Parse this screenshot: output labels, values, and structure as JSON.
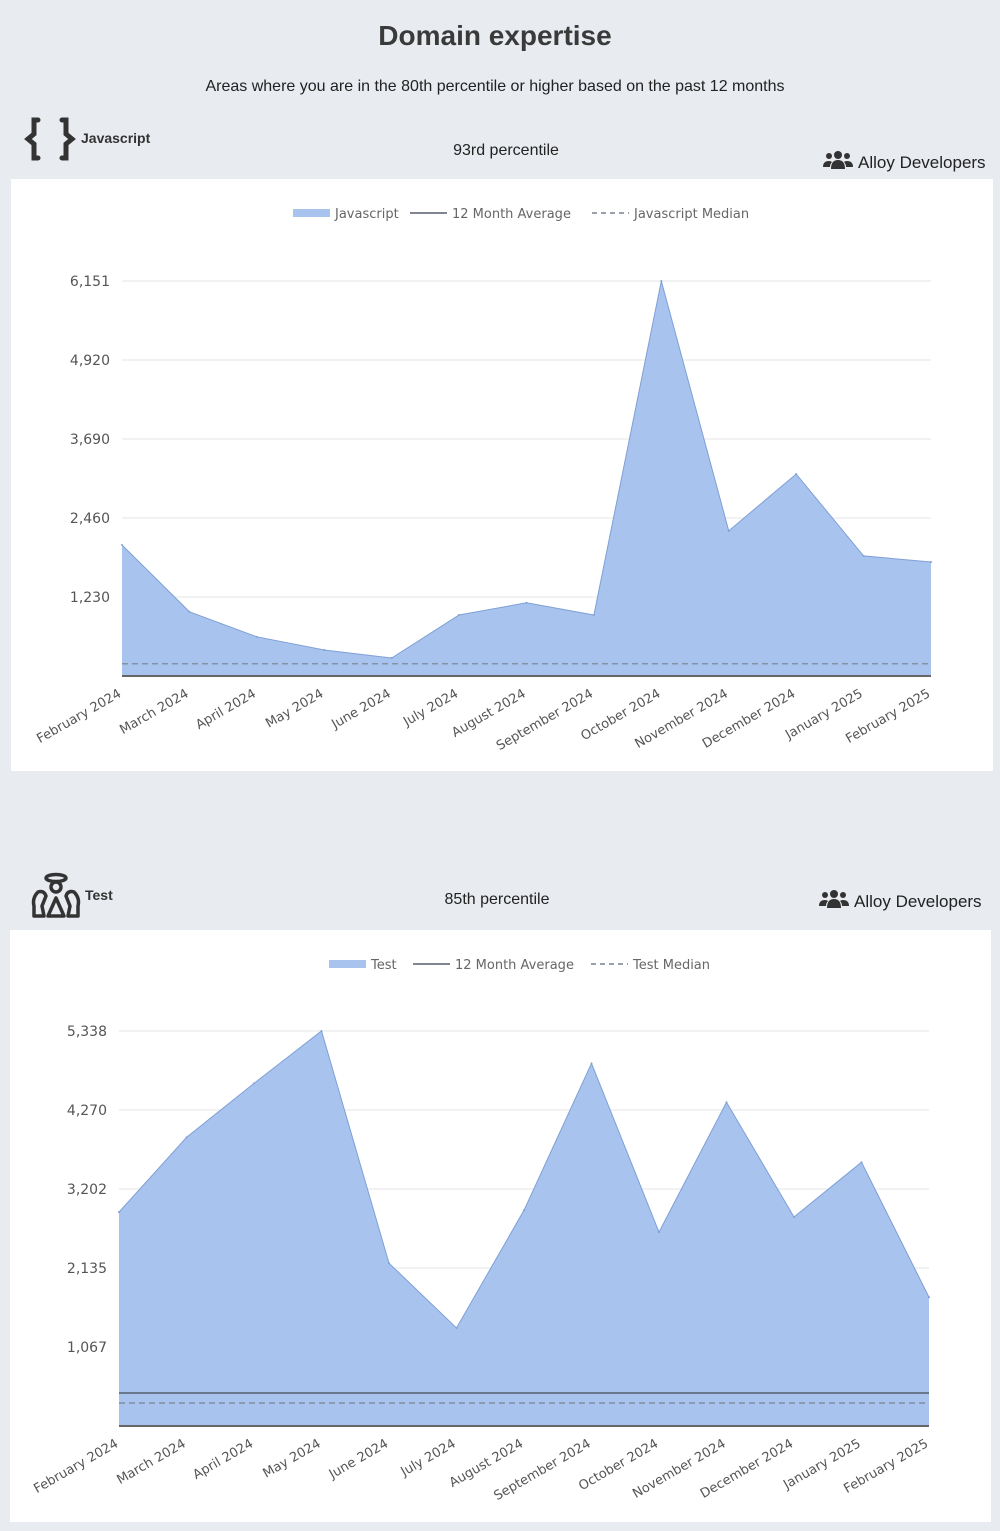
{
  "page": {
    "title": "Domain expertise",
    "subtitle": "Areas where you are in the 80th percentile or higher based on the past 12 months"
  },
  "sections": [
    {
      "name": "Javascript",
      "icon": "curly-braces-icon",
      "percentile": "93rd percentile",
      "team": "Alloy Developers",
      "team_icon": "users-icon"
    },
    {
      "name": "Test",
      "icon": "angel-icon",
      "percentile": "85th percentile",
      "team": "Alloy Developers",
      "team_icon": "users-icon"
    }
  ],
  "colors": {
    "area": "#a8c4ee",
    "area_stroke": "#7f9fd6",
    "average": "#555e6e",
    "median": "#7a8290",
    "grid": "#e6e6e6"
  },
  "chart_data": [
    {
      "type": "area",
      "legend": [
        "Javascript",
        "12 Month Average",
        "Javascript Median"
      ],
      "legend_position": "top-center",
      "categories": [
        "February 2024",
        "March 2024",
        "April 2024",
        "May 2024",
        "June 2024",
        "July 2024",
        "August 2024",
        "September 2024",
        "October 2024",
        "November 2024",
        "December 2024",
        "January 2025",
        "February 2025"
      ],
      "series": [
        {
          "name": "Javascript",
          "values": [
            2040,
            1000,
            610,
            405,
            280,
            950,
            1140,
            950,
            6151,
            2260,
            3145,
            1870,
            1775
          ]
        }
      ],
      "average": null,
      "median": 190,
      "yticks": [
        "1,230",
        "2,460",
        "3,690",
        "4,920",
        "6,151"
      ],
      "ytick_values": [
        1230,
        2460,
        3690,
        4920,
        6151
      ],
      "ylim": [
        0,
        6151
      ],
      "grid": true
    },
    {
      "type": "area",
      "legend": [
        "Test",
        "12 Month Average",
        "Test Median"
      ],
      "legend_position": "top-center",
      "categories": [
        "February 2024",
        "March 2024",
        "April 2024",
        "May 2024",
        "June 2024",
        "July 2024",
        "August 2024",
        "September 2024",
        "October 2024",
        "November 2024",
        "December 2024",
        "January 2025",
        "February 2025"
      ],
      "series": [
        {
          "name": "Test",
          "values": [
            2890,
            3900,
            4630,
            5338,
            2200,
            1325,
            2915,
            4900,
            2620,
            4375,
            2825,
            3565,
            1740
          ]
        }
      ],
      "average": 446,
      "median": 311,
      "yticks": [
        "1,067",
        "2,135",
        "3,202",
        "4,270",
        "5,338"
      ],
      "ytick_values": [
        1067,
        2135,
        3202,
        4270,
        5338
      ],
      "ylim": [
        0,
        5338
      ],
      "grid": true
    }
  ]
}
